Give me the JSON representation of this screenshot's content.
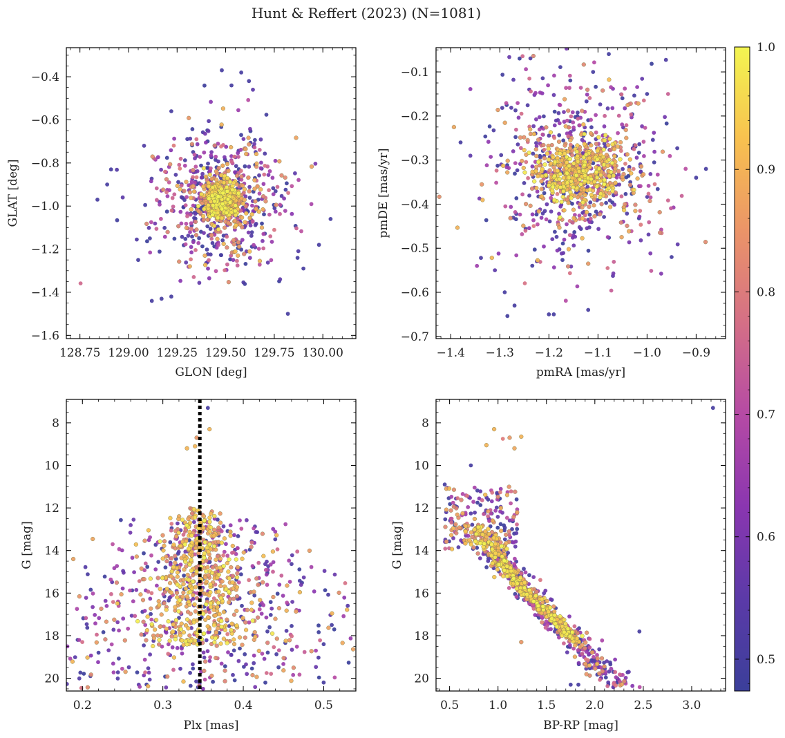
{
  "figure": {
    "title": "Hunt & Reffert (2023) (N=1081)"
  },
  "colormap": {
    "name": "plasma",
    "colors": [
      "#3b3f9a",
      "#5b3aa8",
      "#8a36b0",
      "#b54aa5",
      "#d46f86",
      "#eb9468",
      "#f8c14f",
      "#f3f551"
    ]
  },
  "chart_data": [
    {
      "id": "glon-glat",
      "type": "scatter",
      "title": "",
      "xlabel": "GLON [deg]",
      "ylabel": "GLAT [deg]",
      "xlim": [
        128.68,
        130.17
      ],
      "ylim": [
        -1.615,
        -0.265
      ],
      "xticks": [
        128.75,
        129.0,
        129.25,
        129.5,
        129.75,
        130.0
      ],
      "xtick_labels": [
        "128.75",
        "129.00",
        "129.25",
        "129.50",
        "129.75",
        "130.00"
      ],
      "yticks": [
        -1.6,
        -1.4,
        -1.2,
        -1.0,
        -0.8,
        -0.6,
        -0.4
      ],
      "ytick_labels": [
        "−1.6",
        "−1.4",
        "−1.2",
        "−1.0",
        "−0.8",
        "−0.6",
        "−0.4"
      ],
      "y_inverted": false,
      "point_summary": "1081 members; dense high-probability core at GLON≈129.48, GLAT≈-0.97; low-probability halo from GLON 128.8 to 130.05 and GLAT -1.5 to -0.37",
      "points": [
        {
          "x": 129.48,
          "y": -0.37,
          "p": 0.5
        },
        {
          "x": 129.58,
          "y": -0.38,
          "p": 0.5
        },
        {
          "x": 129.62,
          "y": -0.42,
          "p": 0.5
        },
        {
          "x": 129.53,
          "y": -0.44,
          "p": 0.5
        },
        {
          "x": 129.64,
          "y": -0.46,
          "p": 0.55
        },
        {
          "x": 129.22,
          "y": -0.56,
          "p": 0.5
        },
        {
          "x": 129.08,
          "y": -0.72,
          "p": 0.52
        },
        {
          "x": 128.84,
          "y": -0.97,
          "p": 0.5
        },
        {
          "x": 128.89,
          "y": -0.9,
          "p": 0.5
        },
        {
          "x": 128.91,
          "y": -0.83,
          "p": 0.5
        },
        {
          "x": 128.97,
          "y": -0.96,
          "p": 0.55
        },
        {
          "x": 129.12,
          "y": -1.44,
          "p": 0.5
        },
        {
          "x": 129.17,
          "y": -1.43,
          "p": 0.5
        },
        {
          "x": 129.22,
          "y": -1.42,
          "p": 0.5
        },
        {
          "x": 129.82,
          "y": -1.5,
          "p": 0.5
        },
        {
          "x": 130.04,
          "y": -1.06,
          "p": 0.5
        },
        {
          "x": 129.98,
          "y": -1.18,
          "p": 0.5
        },
        {
          "x": 129.9,
          "y": -1.29,
          "p": 0.5
        },
        {
          "x": 129.78,
          "y": -1.34,
          "p": 0.55
        },
        {
          "x": 129.87,
          "y": -1.24,
          "p": 0.5
        },
        {
          "x": 129.11,
          "y": -1.15,
          "p": 0.5
        },
        {
          "x": 129.05,
          "y": -1.25,
          "p": 0.5
        }
      ]
    },
    {
      "id": "pmra-pmde",
      "type": "scatter",
      "title": "",
      "xlabel": "pmRA [mas/yr]",
      "ylabel": "pmDE [mas/yr]",
      "xlim": [
        -1.43,
        -0.84
      ],
      "ylim": [
        -0.705,
        -0.045
      ],
      "xticks": [
        -1.4,
        -1.3,
        -1.2,
        -1.1,
        -1.0,
        -0.9
      ],
      "xtick_labels": [
        "−1.4",
        "−1.3",
        "−1.2",
        "−1.1",
        "−1.0",
        "−0.9"
      ],
      "yticks": [
        -0.7,
        -0.6,
        -0.5,
        -0.4,
        -0.3,
        -0.2,
        -0.1
      ],
      "ytick_labels": [
        "−0.7",
        "−0.6",
        "−0.5",
        "−0.4",
        "−0.3",
        "−0.2",
        "−0.1"
      ],
      "y_inverted": false,
      "point_summary": "Broad cloud centered near pmRA≈-1.14, pmDE≈-0.33 with high-probability members concentrated at the center",
      "points": [
        {
          "x": -1.11,
          "y": -0.1,
          "p": 0.5
        },
        {
          "x": -1.38,
          "y": -0.26,
          "p": 0.5
        },
        {
          "x": -1.36,
          "y": -0.29,
          "p": 0.55
        },
        {
          "x": -0.88,
          "y": -0.32,
          "p": 0.5
        },
        {
          "x": -0.9,
          "y": -0.34,
          "p": 0.5
        },
        {
          "x": -1.2,
          "y": -0.65,
          "p": 0.5
        },
        {
          "x": -1.19,
          "y": -0.65,
          "p": 0.5
        },
        {
          "x": -1.27,
          "y": -0.63,
          "p": 0.5
        },
        {
          "x": -1.29,
          "y": -0.6,
          "p": 0.5
        },
        {
          "x": -1.12,
          "y": -0.64,
          "p": 0.5
        },
        {
          "x": -0.95,
          "y": -0.52,
          "p": 0.5
        },
        {
          "x": -1.31,
          "y": -0.55,
          "p": 0.55
        },
        {
          "x": -1.24,
          "y": -0.14,
          "p": 0.55
        },
        {
          "x": -1.0,
          "y": -0.15,
          "p": 0.5
        }
      ]
    },
    {
      "id": "plx-g",
      "type": "scatter",
      "title": "",
      "xlabel": "Plx [mas]",
      "ylabel": "G [mag]",
      "xlim": [
        0.18,
        0.54
      ],
      "ylim": [
        20.6,
        6.9
      ],
      "xticks": [
        0.2,
        0.3,
        0.4,
        0.5
      ],
      "xtick_labels": [
        "0.2",
        "0.3",
        "0.4",
        "0.5"
      ],
      "yticks": [
        8,
        10,
        12,
        14,
        16,
        18,
        20
      ],
      "ytick_labels": [
        "8",
        "10",
        "12",
        "14",
        "16",
        "18",
        "20"
      ],
      "y_inverted": true,
      "reference_line": {
        "x": 0.346,
        "style": "dotted",
        "color": "#000000"
      },
      "point_summary": "Members spread from Plx 0.21 to 0.51; bright high-probability stars clustered near Plx≈0.33-0.35; faint stars widely scattered",
      "points": [
        {
          "x": 0.356,
          "y": 7.3,
          "p": 0.5
        },
        {
          "x": 0.358,
          "y": 8.3,
          "p": 0.9
        },
        {
          "x": 0.342,
          "y": 8.7,
          "p": 0.85
        },
        {
          "x": 0.34,
          "y": 9.1,
          "p": 0.9
        },
        {
          "x": 0.33,
          "y": 9.2,
          "p": 0.9
        },
        {
          "x": 0.21,
          "y": 19.9,
          "p": 0.5
        },
        {
          "x": 0.22,
          "y": 18.8,
          "p": 0.5
        },
        {
          "x": 0.51,
          "y": 17.5,
          "p": 0.5
        },
        {
          "x": 0.5,
          "y": 20.2,
          "p": 0.5
        },
        {
          "x": 0.5,
          "y": 18.4,
          "p": 0.5
        },
        {
          "x": 0.43,
          "y": 17.8,
          "p": 0.5
        },
        {
          "x": 0.27,
          "y": 20.3,
          "p": 0.55
        }
      ]
    },
    {
      "id": "bprp-g",
      "type": "scatter",
      "title": "",
      "xlabel": "BP-RP [mag]",
      "ylabel": "G [mag]",
      "xlim": [
        0.36,
        3.35
      ],
      "ylim": [
        20.6,
        6.9
      ],
      "xticks": [
        0.5,
        1.0,
        1.5,
        2.0,
        2.5,
        3.0
      ],
      "xtick_labels": [
        "0.5",
        "1.0",
        "1.5",
        "2.0",
        "2.5",
        "3.0"
      ],
      "yticks": [
        8,
        10,
        12,
        14,
        16,
        18,
        20
      ],
      "ytick_labels": [
        "8",
        "10",
        "12",
        "14",
        "16",
        "18",
        "20"
      ],
      "y_inverted": true,
      "point_summary": "Colour-magnitude diagram: main sequence from (0.9, 13) to (2.2, 19.3); red giants near BP-RP 0.9-1.2, G 8.3-9.3; one outlier at (3.22, 7.3)",
      "points": [
        {
          "x": 3.22,
          "y": 7.3,
          "p": 0.5
        },
        {
          "x": 0.96,
          "y": 8.3,
          "p": 0.9
        },
        {
          "x": 1.12,
          "y": 8.7,
          "p": 0.85
        },
        {
          "x": 1.05,
          "y": 8.75,
          "p": 0.8
        },
        {
          "x": 1.24,
          "y": 8.65,
          "p": 0.9
        },
        {
          "x": 0.88,
          "y": 9.05,
          "p": 0.9
        },
        {
          "x": 1.17,
          "y": 9.2,
          "p": 0.88
        },
        {
          "x": 2.46,
          "y": 17.8,
          "p": 0.5
        },
        {
          "x": 2.35,
          "y": 19.7,
          "p": 0.55
        },
        {
          "x": 1.24,
          "y": 18.3,
          "p": 0.85
        },
        {
          "x": 1.75,
          "y": 20.3,
          "p": 0.5
        },
        {
          "x": 1.83,
          "y": 20.3,
          "p": 0.5
        },
        {
          "x": 0.45,
          "y": 10.9,
          "p": 0.5
        },
        {
          "x": 0.72,
          "y": 10.0,
          "p": 0.5
        }
      ]
    }
  ],
  "colorbar": {
    "label": "",
    "ticks": [
      0.5,
      0.6,
      0.7,
      0.8,
      0.9,
      1.0
    ],
    "tick_labels": [
      "0.5",
      "0.6",
      "0.7",
      "0.8",
      "0.9",
      "1.0"
    ],
    "range": [
      0.474,
      1.0
    ]
  }
}
